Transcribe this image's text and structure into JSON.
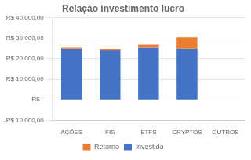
{
  "chart_data": {
    "type": "bar",
    "title": "Relação investimento lucro",
    "categories": [
      "AÇÕES",
      "FIS",
      "ETFS",
      "CRYPTOS",
      "OUTROS"
    ],
    "series": [
      {
        "name": "Investido",
        "color": "#4472C4",
        "values": [
          25000,
          24500,
          25500,
          25000,
          0
        ]
      },
      {
        "name": "Retorno",
        "color": "#ED7D31",
        "values": [
          500,
          -500,
          1500,
          5500,
          0
        ]
      }
    ],
    "stacked": true,
    "ylim": [
      -10000,
      40000
    ],
    "yticks": [
      {
        "value": -10000,
        "label": "-R$ 10.000,00"
      },
      {
        "value": 0,
        "label": "R$ -"
      },
      {
        "value": 10000,
        "label": "R$ 10.000,00"
      },
      {
        "value": 20000,
        "label": "R$ 20.000,00"
      },
      {
        "value": 30000,
        "label": "R$ 30.000,00"
      },
      {
        "value": 40000,
        "label": "R$ 40.000,00"
      }
    ],
    "grid": true,
    "legend": "bottom"
  }
}
